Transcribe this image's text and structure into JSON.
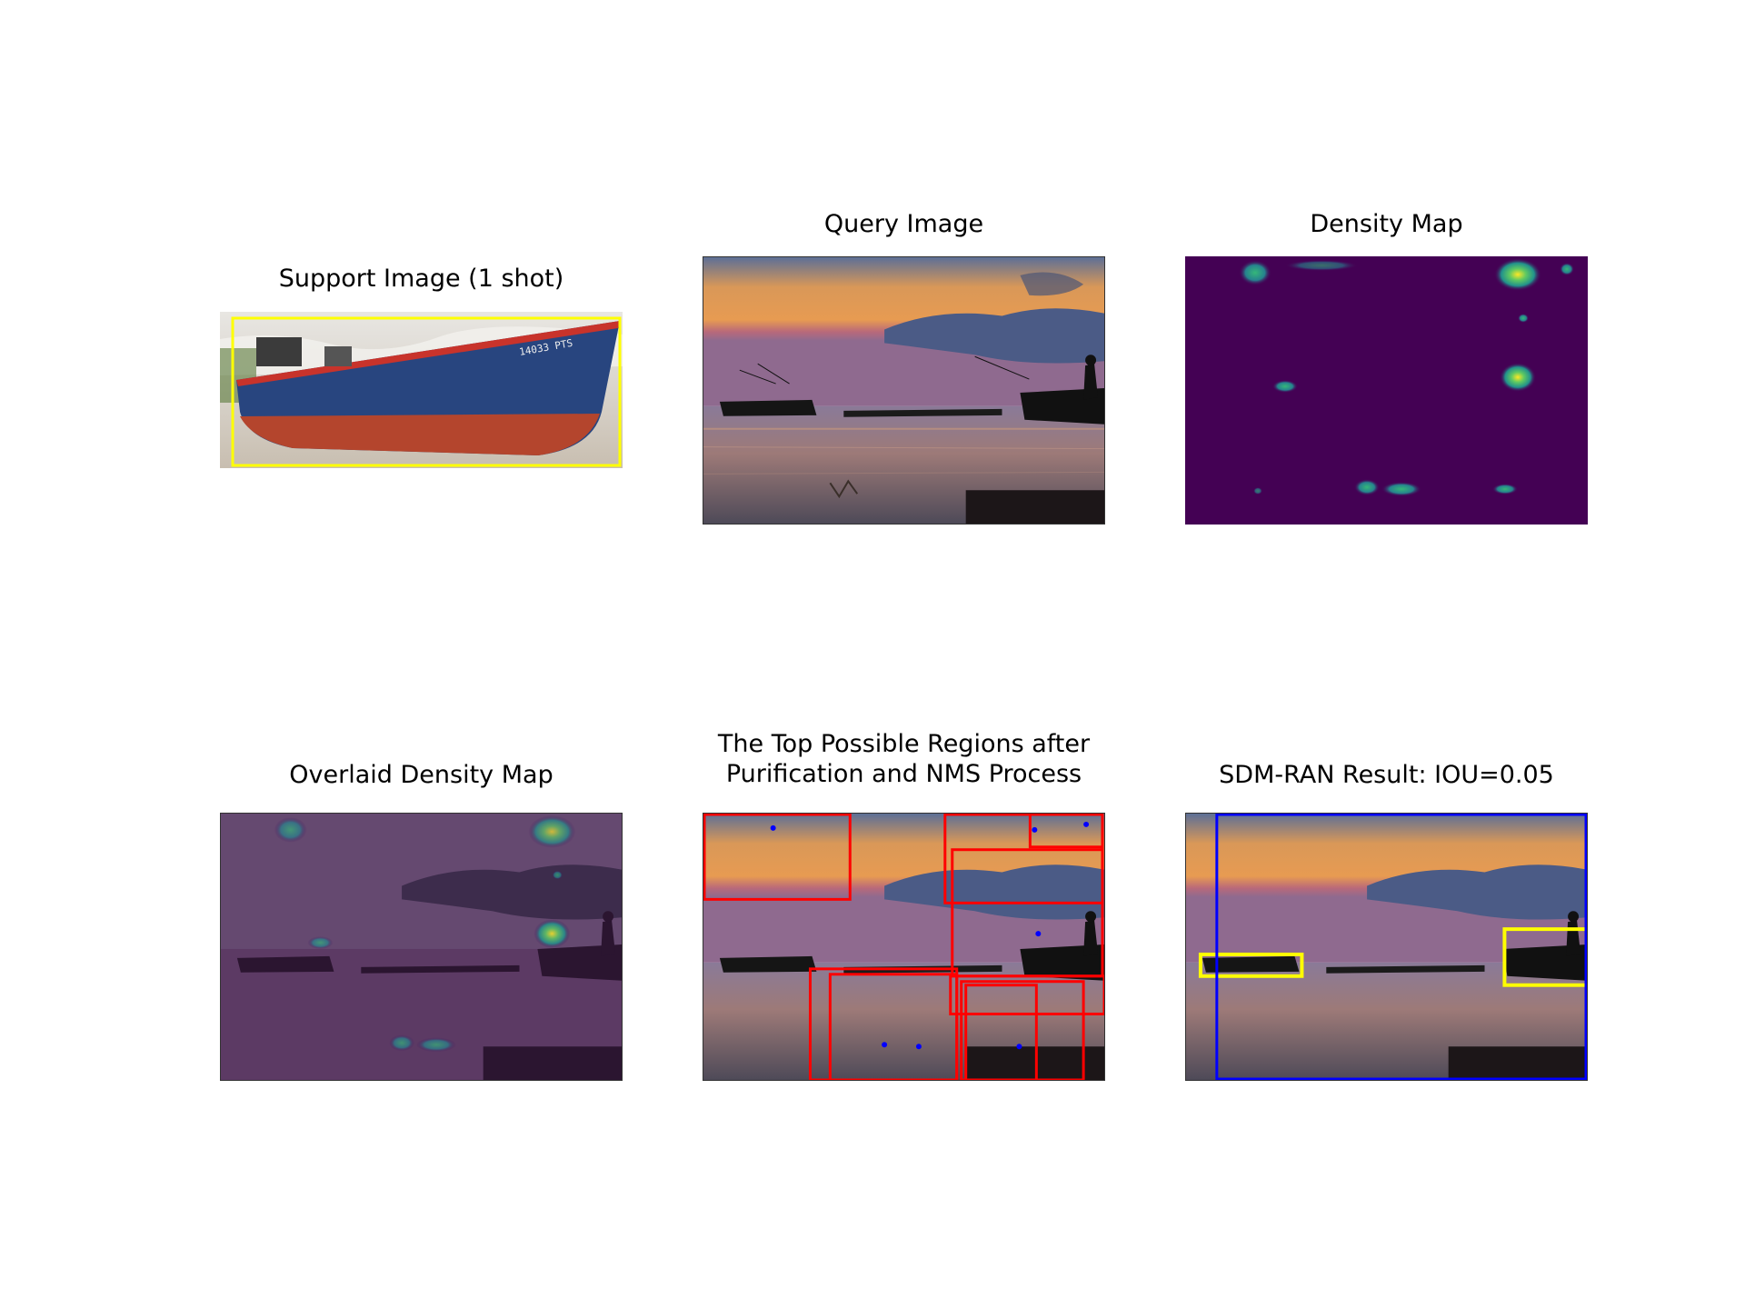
{
  "figure": {
    "panels": [
      {
        "title": "Support Image (1 shot)",
        "image": "blue-boat-on-beach",
        "box_color": "#ffff00"
      },
      {
        "title": "Query Image",
        "image": "sunset-lake-with-fishing-boats"
      },
      {
        "title": "Density Map",
        "image": "viridis-density-heatmap"
      },
      {
        "title": "Overlaid Density Map",
        "image": "density-overlaid-on-query"
      },
      {
        "title_lines": [
          "The Top Possible Regions after",
          "Purification and NMS Process"
        ],
        "image": "query-with-candidate-regions",
        "box_color": "#ff0000",
        "point_color": "#0000ff"
      },
      {
        "title": "SDM-RAN Result: IOU=0.05",
        "image": "query-with-detections",
        "gt_color": "#ffff00",
        "pred_color": "#0000ff"
      }
    ]
  }
}
